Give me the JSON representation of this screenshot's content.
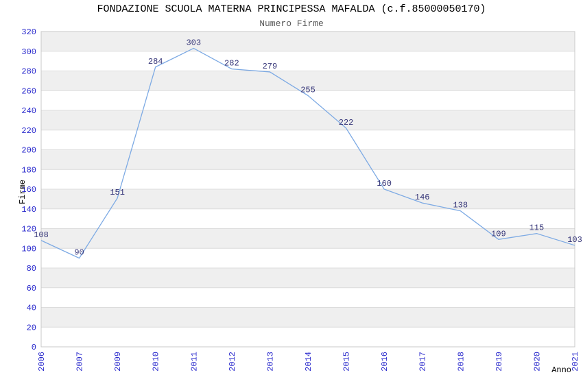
{
  "chart_data": {
    "type": "line",
    "title": "FONDAZIONE SCUOLA MATERNA PRINCIPESSA MAFALDA (c.f.85000050170)",
    "subtitle": "Numero Firme",
    "xlabel": "Anno",
    "ylabel": "Firme",
    "categories": [
      "2006",
      "2007",
      "2009",
      "2010",
      "2011",
      "2012",
      "2013",
      "2014",
      "2015",
      "2016",
      "2017",
      "2018",
      "2019",
      "2020",
      "2021"
    ],
    "values": [
      108,
      90,
      151,
      284,
      303,
      282,
      279,
      255,
      222,
      160,
      146,
      138,
      109,
      115,
      103
    ],
    "ylim": [
      0,
      320
    ],
    "ytick_step": 20,
    "grid": true,
    "legend": "none",
    "data_labels": true,
    "x_tick_rotation": -90,
    "colors": {
      "line": "#7DAAE4",
      "axis_tick_text": "#2828CC",
      "data_label_text": "#333377",
      "title_text": "#000000",
      "subtitle_text": "#595959",
      "band_fill": "#EFEFEF",
      "band_alt_fill": "#FFFFFF",
      "gridline": "#DCDCDC",
      "plot_border": "#C8C8C8",
      "axis_title_text": "#000000"
    }
  }
}
